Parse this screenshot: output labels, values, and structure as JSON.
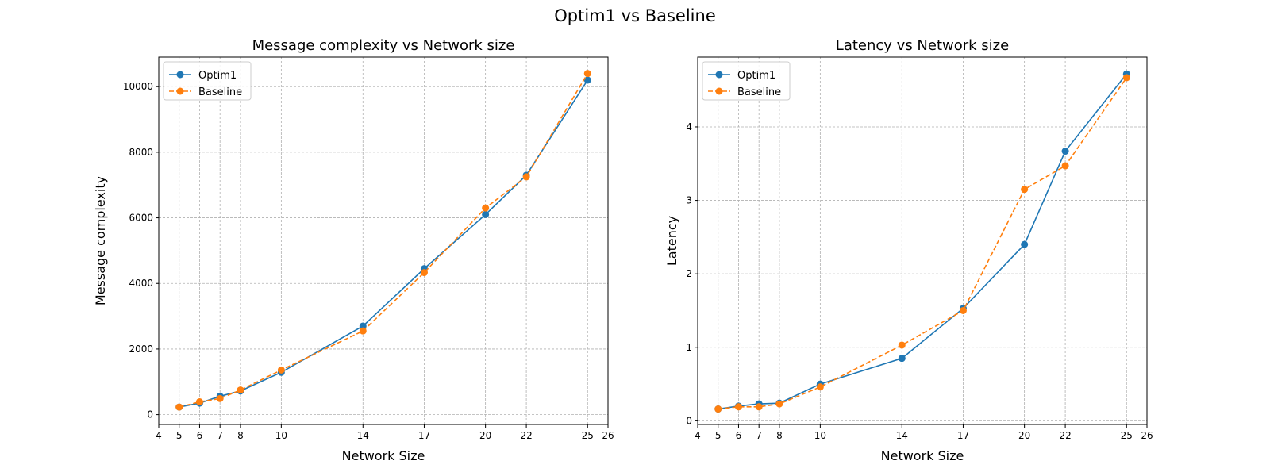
{
  "figure": {
    "suptitle": "Optim1 vs Baseline"
  },
  "colors": {
    "optim1": "#1f77b4",
    "baseline": "#ff7f0e"
  },
  "chart_data": [
    {
      "type": "line",
      "title": "Message complexity vs Network size",
      "xlabel": "Network Size",
      "ylabel": "Message complexity",
      "xlim": [
        4,
        26
      ],
      "ylim": [
        -300,
        10900
      ],
      "xticks": [
        4,
        5,
        6,
        7,
        8,
        10,
        14,
        17,
        20,
        22,
        25,
        26
      ],
      "yticks": [
        0,
        2000,
        4000,
        6000,
        8000,
        10000
      ],
      "grid": true,
      "legend": "upper-left",
      "x": [
        5,
        6,
        7,
        8,
        10,
        14,
        17,
        20,
        22,
        25
      ],
      "series": [
        {
          "name": "Optim1",
          "style": "solid",
          "color": "#1f77b4",
          "values": [
            230,
            350,
            560,
            720,
            1290,
            2700,
            4450,
            6100,
            7300,
            10200
          ]
        },
        {
          "name": "Baseline",
          "style": "dashed",
          "color": "#ff7f0e",
          "values": [
            230,
            390,
            490,
            750,
            1360,
            2550,
            4330,
            6300,
            7250,
            10400
          ]
        }
      ]
    },
    {
      "type": "line",
      "title": "Latency vs Network size",
      "xlabel": "Network Size",
      "ylabel": "Latency",
      "xlim": [
        4,
        26
      ],
      "ylim": [
        -0.05,
        4.95
      ],
      "xticks": [
        4,
        5,
        6,
        7,
        8,
        10,
        14,
        17,
        20,
        22,
        25,
        26
      ],
      "yticks": [
        0,
        1,
        2,
        3,
        4
      ],
      "grid": true,
      "legend": "upper-left",
      "x": [
        5,
        6,
        7,
        8,
        10,
        14,
        17,
        20,
        22,
        25
      ],
      "series": [
        {
          "name": "Optim1",
          "style": "solid",
          "color": "#1f77b4",
          "values": [
            0.16,
            0.2,
            0.23,
            0.24,
            0.5,
            0.85,
            1.53,
            2.4,
            3.67,
            4.72
          ]
        },
        {
          "name": "Baseline",
          "style": "dashed",
          "color": "#ff7f0e",
          "values": [
            0.16,
            0.19,
            0.19,
            0.23,
            0.46,
            1.03,
            1.5,
            3.15,
            3.47,
            4.67
          ]
        }
      ]
    }
  ]
}
